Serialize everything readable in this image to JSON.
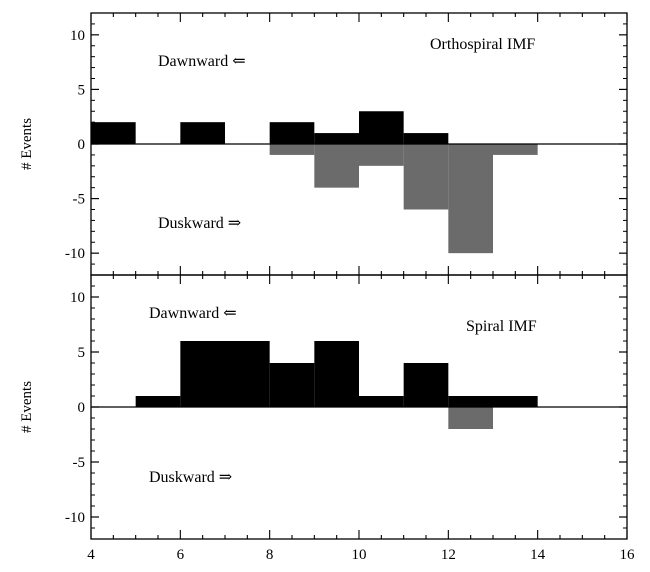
{
  "chart_data": [
    {
      "type": "bar",
      "title": "Orthospiral IMF",
      "ylabel": "# Events",
      "xlim": [
        4,
        16
      ],
      "ylim": [
        -12,
        12
      ],
      "yticks": [
        "10",
        "5",
        "0",
        "-5",
        "-10"
      ],
      "annotations": {
        "dawnward": "Dawnward  ⇐",
        "duskward": "Duskward  ⇒"
      },
      "colors": {
        "dawnward": "#000000",
        "duskward": "#6b6b6b"
      },
      "series": [
        {
          "direction": "dawnward",
          "bins": [
            {
              "x0": 4,
              "x1": 5,
              "value": 2
            },
            {
              "x0": 6,
              "x1": 7,
              "value": 2
            },
            {
              "x0": 8,
              "x1": 9,
              "value": 2
            },
            {
              "x0": 9,
              "x1": 10,
              "value": 1
            },
            {
              "x0": 10,
              "x1": 11,
              "value": 3
            },
            {
              "x0": 11,
              "x1": 12,
              "value": 1
            }
          ]
        },
        {
          "direction": "duskward",
          "bins": [
            {
              "x0": 8,
              "x1": 9,
              "value": -1
            },
            {
              "x0": 9,
              "x1": 10,
              "value": -4
            },
            {
              "x0": 10,
              "x1": 11,
              "value": -2
            },
            {
              "x0": 11,
              "x1": 12,
              "value": -6
            },
            {
              "x0": 12,
              "x1": 13,
              "value": -10
            },
            {
              "x0": 13,
              "x1": 14,
              "value": -1
            }
          ]
        }
      ]
    },
    {
      "type": "bar",
      "title": "Spiral IMF",
      "ylabel": "# Events",
      "xlim": [
        4,
        16
      ],
      "ylim": [
        -12,
        12
      ],
      "xticks": [
        "4",
        "6",
        "8",
        "10",
        "12",
        "14",
        "16"
      ],
      "yticks": [
        "10",
        "5",
        "0",
        "-5",
        "-10"
      ],
      "annotations": {
        "dawnward": "Dawnward  ⇐",
        "duskward": "Duskward  ⇒"
      },
      "colors": {
        "dawnward": "#000000",
        "duskward": "#6b6b6b"
      },
      "series": [
        {
          "direction": "dawnward",
          "bins": [
            {
              "x0": 5,
              "x1": 6,
              "value": 1
            },
            {
              "x0": 6,
              "x1": 7,
              "value": 6
            },
            {
              "x0": 7,
              "x1": 8,
              "value": 6
            },
            {
              "x0": 8,
              "x1": 9,
              "value": 4
            },
            {
              "x0": 9,
              "x1": 10,
              "value": 6
            },
            {
              "x0": 10,
              "x1": 11,
              "value": 1
            },
            {
              "x0": 11,
              "x1": 12,
              "value": 4
            },
            {
              "x0": 12,
              "x1": 13,
              "value": 1
            },
            {
              "x0": 13,
              "x1": 14,
              "value": 1
            }
          ]
        },
        {
          "direction": "duskward",
          "bins": [
            {
              "x0": 12,
              "x1": 13,
              "value": -2
            }
          ]
        }
      ]
    }
  ]
}
